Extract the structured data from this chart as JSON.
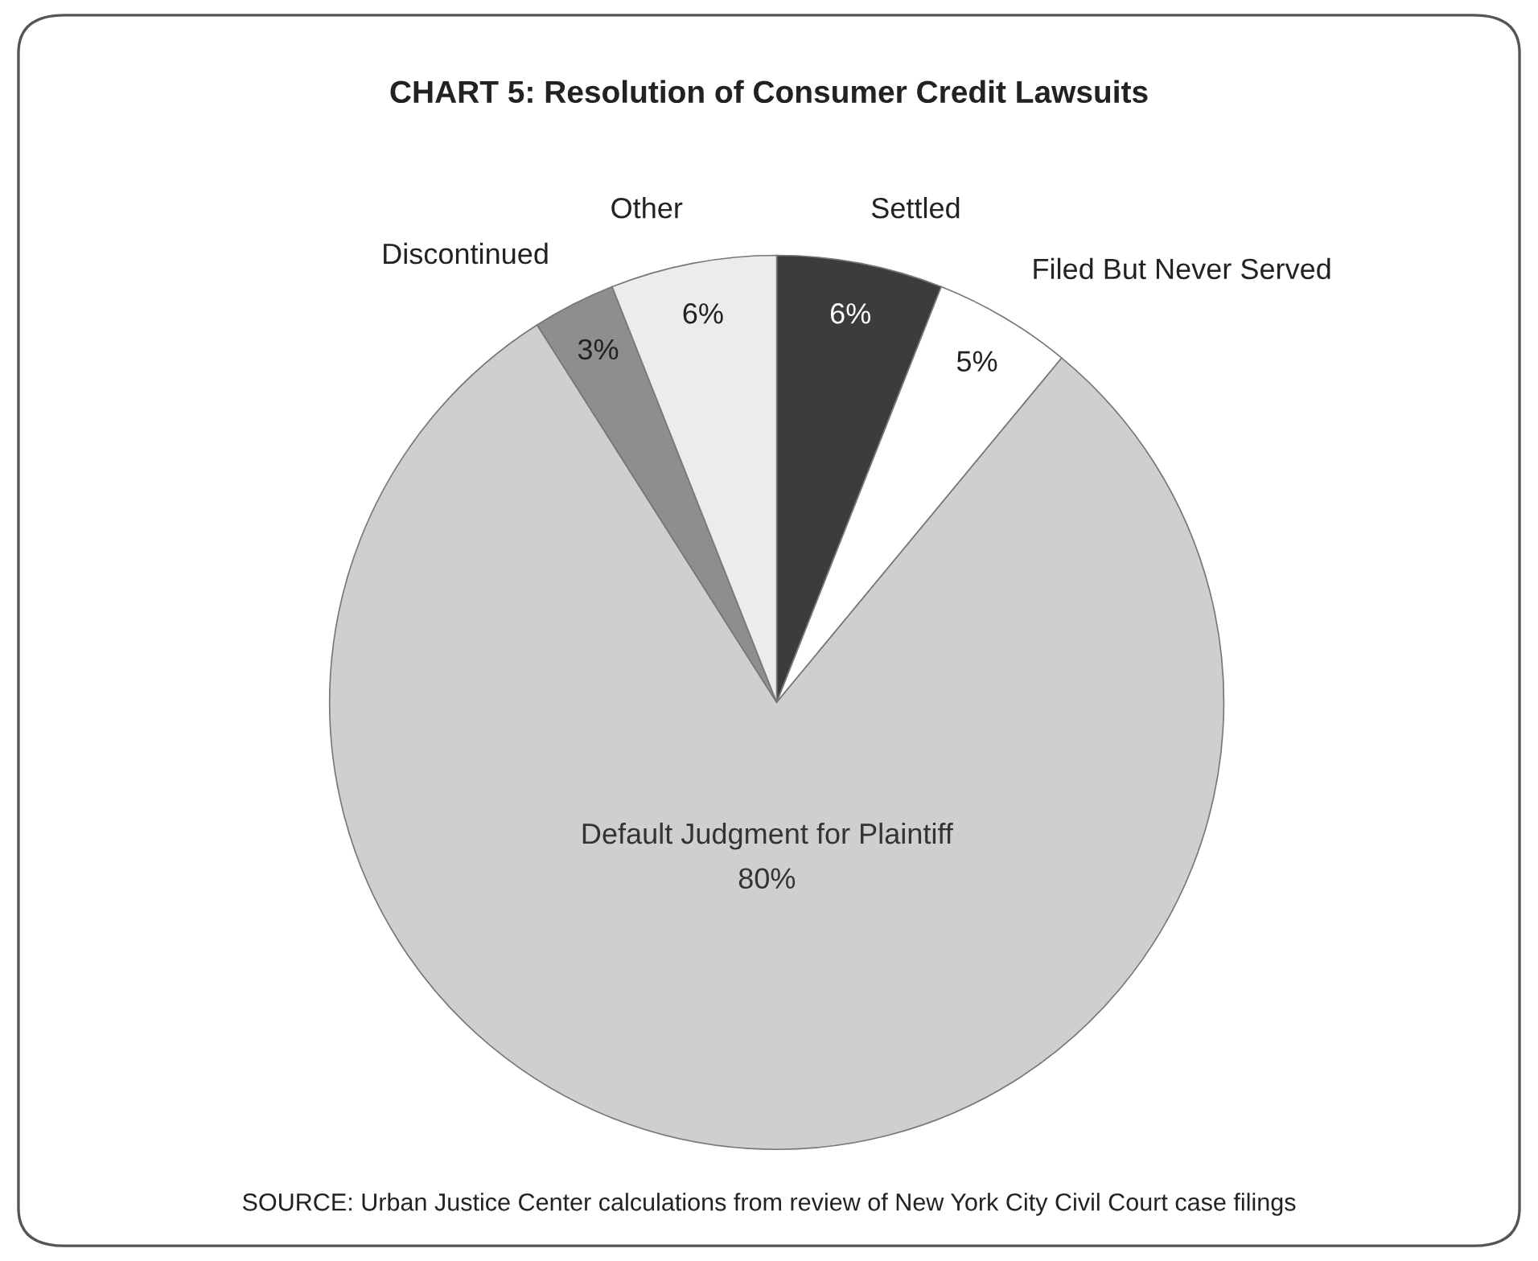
{
  "chart_data": {
    "type": "pie",
    "title": "CHART 5: Resolution of Consumer Credit Lawsuits",
    "categories": [
      "Settled",
      "Filed But Never Served",
      "Default Judgment for Plaintiff",
      "Discontinued",
      "Other"
    ],
    "values": [
      6,
      5,
      80,
      3,
      6
    ],
    "colors": [
      "#3c3c3c",
      "#ffffff",
      "#cfcfcf",
      "#8e8e8e",
      "#ececec"
    ],
    "value_labels": [
      "6%",
      "5%",
      "80%",
      "3%",
      "6%"
    ],
    "legend": false,
    "annotations": [
      "SOURCE: Urban Justice Center calculations from review of New York City Civil Court case filings"
    ]
  }
}
